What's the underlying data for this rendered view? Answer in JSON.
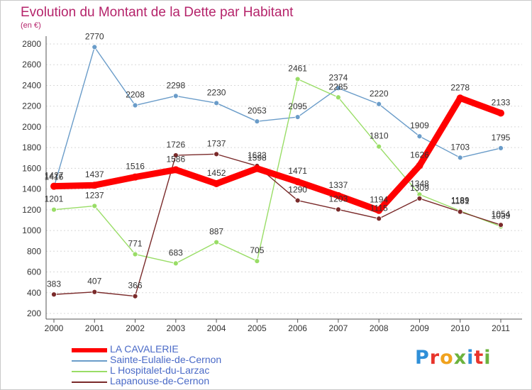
{
  "chart_data": {
    "type": "line",
    "title": "Evolution du Montant de la Dette par Habitant",
    "subtitle": "(en €)",
    "categories": [
      "2000",
      "2001",
      "2002",
      "2003",
      "2004",
      "2005",
      "2006",
      "2007",
      "2008",
      "2009",
      "2010",
      "2011"
    ],
    "y_ticks": [
      200,
      400,
      600,
      800,
      1000,
      1200,
      1400,
      1600,
      1800,
      2000,
      2200,
      2400,
      2600,
      2800
    ],
    "ylim": [
      200,
      2800
    ],
    "grid": "horizontal dashed",
    "legend_position": "bottom-left",
    "series": [
      {
        "name": "LA CAVALERIE",
        "color": "#ff0000",
        "values": [
          1427,
          1437,
          1516,
          1586,
          1452,
          1598,
          1471,
          1337,
          1194,
          1626,
          2278,
          2133
        ]
      },
      {
        "name": "Sainte-Eulalie-de-Cernon",
        "color": "#6a9cc9",
        "values": [
          1416,
          2770,
          2208,
          2298,
          2230,
          2053,
          2095,
          2374,
          2220,
          1909,
          1703,
          1795
        ]
      },
      {
        "name": "L  Hospitalet-du-Larzac",
        "color": "#99dd66",
        "values": [
          1201,
          1237,
          771,
          683,
          887,
          705,
          2461,
          2285,
          1810,
          1348,
          1189,
          1039
        ]
      },
      {
        "name": "Lapanouse-de-Cernon",
        "color": "#7a2a2a",
        "values": [
          383,
          407,
          366,
          1726,
          1737,
          1623,
          1290,
          1203,
          1115,
          1309,
          1181,
          1054
        ]
      }
    ]
  },
  "brand": {
    "name": "Proxiti",
    "letters": [
      "P",
      "r",
      "o",
      "x",
      "i",
      "t",
      "i"
    ],
    "colors": [
      "#2f8fd8",
      "#e8342b",
      "#f0a21d",
      "#6cb33e",
      "#2f8fd8",
      "#e8342b",
      "#6cb33e"
    ]
  }
}
